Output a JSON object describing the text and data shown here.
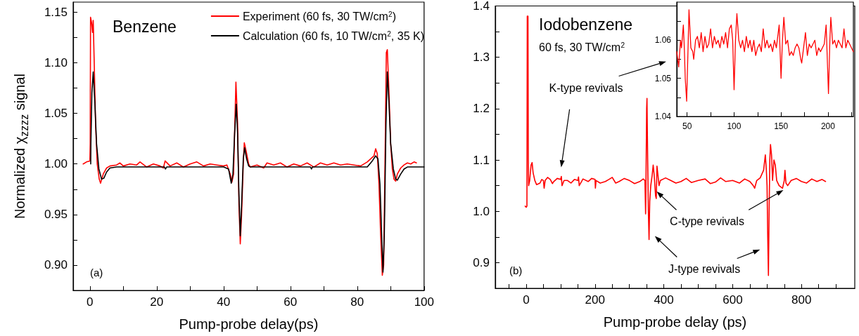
{
  "chart_data": [
    {
      "type": "line",
      "xlabel": "Pump-probe delay(ps)",
      "ylabel": "Normalized χ$_{zzzz}$ signal",
      "legend": "top right",
      "grid": false,
      "marker": "none",
      "xlim": [
        -5,
        100
      ],
      "ylim": [
        0.875,
        1.16
      ],
      "xticks": [
        0,
        {
          "value": 10,
          "label": null
        },
        20,
        {
          "value": 30,
          "label": null
        },
        40,
        {
          "value": 50,
          "label": null
        },
        60,
        {
          "value": 70,
          "label": null
        },
        80,
        {
          "value": 90,
          "label": null
        },
        100
      ],
      "yticks": [
        {
          "value": 0.9,
          "label": "0.90"
        },
        {
          "value": 0.925,
          "label": null
        },
        {
          "value": 0.95,
          "label": "0.95"
        },
        {
          "value": 0.975,
          "label": null
        },
        {
          "value": 1.0,
          "label": "1.00"
        },
        {
          "value": 1.025,
          "label": null
        },
        {
          "value": 1.05,
          "label": "1.05"
        },
        {
          "value": 1.075,
          "label": null
        },
        {
          "value": 1.1,
          "label": "1.10"
        },
        {
          "value": 1.125,
          "label": null
        },
        {
          "value": 1.15,
          "label": "1.15"
        }
      ],
      "annotations": [
        "Benzene",
        "(a)"
      ],
      "series": [
        {
          "name": "Experiment (60 fs, 30 TW/cm$^{2}$)",
          "color": "#ff0000",
          "x": [
            -2,
            -1,
            0,
            0.1,
            0.2,
            0.5,
            0.8,
            1.0,
            1.3,
            1.7,
            2.2,
            2.8,
            3.2,
            4,
            5,
            6,
            8,
            9,
            10,
            12,
            14,
            15,
            17,
            19,
            21,
            22,
            22.5,
            24,
            26,
            28,
            30,
            32,
            34,
            36,
            38,
            40,
            41,
            42,
            42.5,
            43,
            43.3,
            43.7,
            44.2,
            44.6,
            45,
            45.4,
            45.9,
            46.2,
            46.8,
            47.5,
            48,
            50,
            52,
            53,
            55,
            57,
            59,
            61,
            63,
            65,
            67,
            69,
            71,
            73,
            75,
            77,
            79,
            81,
            83,
            85,
            85.5,
            86,
            86.5,
            87,
            87.5,
            87.9,
            88.3,
            88.7,
            89,
            89.5,
            90,
            90.5,
            91,
            91.5,
            92,
            93,
            94,
            95,
            96,
            97,
            97.7
          ],
          "values": [
            1.0,
            1.002,
            1.003,
            1.02,
            1.145,
            1.14,
            1.13,
            1.142,
            1.1,
            1.04,
            1.0,
            0.985,
            0.981,
            0.99,
            0.996,
            0.998,
            0.999,
            1.001,
            0.998,
            1.0,
            0.999,
            1.002,
            0.997,
            1.0,
            0.998,
            0.996,
            1.003,
            0.998,
            1.001,
            0.997,
            1.0,
            1.002,
            0.998,
            1.0,
            0.999,
            0.998,
            0.999,
            0.99,
            0.982,
            0.99,
            1.03,
            1.081,
            1.04,
            0.96,
            0.921,
            0.95,
            1.0,
            1.021,
            1.012,
            1.0,
            0.997,
            0.999,
            0.996,
            1.001,
            0.999,
            1.001,
            0.997,
            1.0,
            0.998,
            1.001,
            0.997,
            1.001,
            0.999,
            1.001,
            0.999,
            1.0,
            0.999,
            0.998,
            1.002,
            1.008,
            1.015,
            1.01,
            0.98,
            0.93,
            0.89,
            0.9,
            1.0,
            1.11,
            1.113,
            1.07,
            1.02,
            0.995,
            0.985,
            0.983,
            0.99,
            0.996,
            0.999,
            1.001,
            1.0,
            1.002,
            1.001
          ]
        },
        {
          "name": "Calculation (60 fs, 10 TW/cm$^{2}$, 35 K)",
          "color": "#000000",
          "x": [
            0.25,
            0.3,
            0.6,
            1,
            1.5,
            2,
            2.7,
            3.5,
            4.2,
            5,
            6,
            8,
            20,
            22.3,
            22.6,
            23,
            40,
            41.5,
            42.3,
            42.8,
            43.3,
            43.8,
            44.2,
            44.6,
            45,
            45.4,
            45.9,
            46.3,
            46.9,
            47.5,
            48,
            66,
            66.3,
            66.6,
            83,
            84.5,
            85.5,
            86.2,
            86.8,
            87.3,
            87.7,
            88.1,
            88.6,
            89,
            89.5,
            90,
            90.8,
            91.5,
            92,
            93,
            94,
            95,
            100
          ],
          "values": [
            1.0,
            1.02,
            1.07,
            1.091,
            1.06,
            1.02,
            0.995,
            0.985,
            0.986,
            0.992,
            0.996,
            0.997,
            0.997,
            0.997,
            0.995,
            0.997,
            0.997,
            0.995,
            0.981,
            0.99,
            1.03,
            1.059,
            1.03,
            0.97,
            0.929,
            0.96,
            1.005,
            1.016,
            1.005,
            0.998,
            0.997,
            0.997,
            0.995,
            0.997,
            0.997,
            1.003,
            1.008,
            1.005,
            0.98,
            0.93,
            0.893,
            0.93,
            1.04,
            1.091,
            1.06,
            1.02,
            0.995,
            0.985,
            0.984,
            0.99,
            0.995,
            0.997,
            0.997
          ]
        }
      ]
    },
    {
      "type": "line",
      "xlabel": "Pump-probe delay (ps)",
      "grid": false,
      "marker": "none",
      "xlim": [
        -90,
        955
      ],
      "ylim": [
        0.85,
        1.4
      ],
      "xticks": [
        {
          "value": -50,
          "label": null
        },
        0,
        {
          "value": 50,
          "label": null
        },
        {
          "value": 100,
          "label": null
        },
        {
          "value": 150,
          "label": null
        },
        200,
        {
          "value": 250,
          "label": null
        },
        {
          "value": 300,
          "label": null
        },
        {
          "value": 350,
          "label": null
        },
        400,
        {
          "value": 450,
          "label": null
        },
        {
          "value": 500,
          "label": null
        },
        {
          "value": 550,
          "label": null
        },
        600,
        {
          "value": 650,
          "label": null
        },
        {
          "value": 700,
          "label": null
        },
        {
          "value": 750,
          "label": null
        },
        800,
        {
          "value": 850,
          "label": null
        },
        {
          "value": 900,
          "label": null
        }
      ],
      "yticks": [
        {
          "value": 0.85,
          "label": null
        },
        {
          "value": 0.9,
          "label": "0.9"
        },
        {
          "value": 0.95,
          "label": null
        },
        {
          "value": 1.0,
          "label": "1.0"
        },
        {
          "value": 1.05,
          "label": null
        },
        {
          "value": 1.1,
          "label": "1.1"
        },
        {
          "value": 1.15,
          "label": null
        },
        {
          "value": 1.2,
          "label": "1.2"
        },
        {
          "value": 1.25,
          "label": null
        },
        {
          "value": 1.3,
          "label": "1.3"
        },
        {
          "value": 1.35,
          "label": null
        },
        {
          "value": 1.4,
          "label": "1.4"
        }
      ],
      "annotations": [
        "Iodobenzene",
        "60 fs, 30 TW/cm$^{2}$",
        "K-type revivals",
        "C-type revivals",
        "J-type revivals",
        "(b)"
      ],
      "series": [
        {
          "color": "#ff0000",
          "x": [
            -3,
            0,
            2,
            3,
            5,
            6,
            7,
            10,
            14,
            17,
            20,
            25,
            30,
            40,
            45,
            50,
            52,
            55,
            62,
            70,
            76,
            80,
            90,
            100,
            102,
            104,
            110,
            120,
            130,
            140,
            150,
            152,
            154,
            165,
            180,
            190,
            200,
            201,
            203,
            215,
            230,
            240,
            250,
            260,
            270,
            285,
            300,
            315,
            330,
            340,
            345,
            347,
            348,
            350,
            351,
            353,
            355,
            357,
            359,
            362,
            366,
            369,
            372,
            376,
            378,
            380,
            383,
            386,
            390,
            405,
            420,
            435,
            450,
            465,
            480,
            500,
            520,
            535,
            550,
            565,
            580,
            600,
            620,
            635,
            650,
            660,
            664,
            670,
            680,
            690,
            695,
            698,
            700,
            702,
            704,
            706,
            708,
            710,
            713,
            716,
            720,
            724,
            728,
            735,
            745,
            750,
            752,
            755,
            760,
            770,
            785,
            800,
            815,
            830,
            845,
            860,
            870
          ],
          "values": [
            1.01,
            1.008,
            1.01,
            1.38,
            1.38,
            1.1,
            1.05,
            1.06,
            1.09,
            1.095,
            1.075,
            1.06,
            1.052,
            1.055,
            1.062,
            1.06,
            1.045,
            1.06,
            1.066,
            1.062,
            1.054,
            1.058,
            1.064,
            1.062,
            1.068,
            1.05,
            1.06,
            1.06,
            1.055,
            1.062,
            1.06,
            1.067,
            1.05,
            1.063,
            1.058,
            1.064,
            1.062,
            1.045,
            1.06,
            1.055,
            1.058,
            1.062,
            1.066,
            1.055,
            1.058,
            1.064,
            1.06,
            1.054,
            1.058,
            1.063,
            1.06,
            0.995,
            1.05,
            1.2,
            1.22,
            1.1,
            1.0,
            0.945,
            1.02,
            1.05,
            1.07,
            1.09,
            1.07,
            1.03,
            1.025,
            1.088,
            1.07,
            1.05,
            1.06,
            1.065,
            1.06,
            1.055,
            1.058,
            1.064,
            1.056,
            1.06,
            1.063,
            1.054,
            1.057,
            1.065,
            1.058,
            1.06,
            1.055,
            1.063,
            1.058,
            1.05,
            1.045,
            1.06,
            1.065,
            1.08,
            1.11,
            1.08,
            1.05,
            0.95,
            0.875,
            1.0,
            1.1,
            1.13,
            1.11,
            1.06,
            1.1,
            1.09,
            1.06,
            1.05,
            1.045,
            1.06,
            1.08,
            1.055,
            1.05,
            1.06,
            1.064,
            1.058,
            1.055,
            1.063,
            1.058,
            1.062,
            1.058
          ]
        }
      ]
    },
    {
      "type": "line",
      "grid": false,
      "marker": "none",
      "xlim": [
        39,
        227
      ],
      "ylim": [
        1.04,
        1.07
      ],
      "xticks": [
        50,
        {
          "value": 75,
          "label": null
        },
        100,
        {
          "value": 125,
          "label": null
        },
        150,
        {
          "value": 175,
          "label": null
        },
        200,
        {
          "value": 225,
          "label": null
        }
      ],
      "yticks": [
        1.04,
        {
          "value": 1.045,
          "label": null
        },
        1.05,
        {
          "value": 1.055,
          "label": null
        },
        1.06,
        {
          "value": 1.065,
          "label": null
        }
      ],
      "series": [
        {
          "color": "#ff0000",
          "x": [
            39,
            40,
            41,
            43,
            44,
            46,
            47,
            48,
            49.5,
            51,
            52,
            53,
            54,
            56,
            57,
            59,
            61,
            63,
            65,
            67,
            69,
            71,
            73,
            75,
            77,
            79,
            81,
            83,
            85,
            87,
            89,
            91,
            93,
            95,
            97,
            98.5,
            100,
            101.5,
            103,
            105,
            107,
            109,
            111,
            113,
            115,
            117,
            119,
            121,
            123,
            125,
            127,
            129,
            131,
            133,
            135,
            137,
            139,
            141,
            143,
            145,
            148,
            150,
            151.5,
            153,
            155,
            157,
            159,
            161,
            163,
            165,
            167,
            169,
            171,
            172,
            174,
            176,
            178,
            180,
            182,
            184,
            186,
            188,
            190,
            192,
            194,
            196,
            198,
            200.5,
            202,
            203,
            205,
            207,
            209,
            211,
            213,
            215,
            217,
            219,
            221,
            223,
            225,
            227
          ],
          "values": [
            1.057,
            1.055,
            1.053,
            1.06,
            1.058,
            1.064,
            1.058,
            1.05,
            1.044,
            1.058,
            1.068,
            1.063,
            1.058,
            1.057,
            1.055,
            1.06,
            1.061,
            1.058,
            1.062,
            1.057,
            1.061,
            1.058,
            1.059,
            1.063,
            1.058,
            1.061,
            1.059,
            1.06,
            1.058,
            1.061,
            1.059,
            1.062,
            1.058,
            1.063,
            1.064,
            1.06,
            1.047,
            1.06,
            1.067,
            1.06,
            1.058,
            1.06,
            1.057,
            1.061,
            1.058,
            1.06,
            1.057,
            1.06,
            1.056,
            1.058,
            1.059,
            1.057,
            1.063,
            1.058,
            1.06,
            1.058,
            1.059,
            1.057,
            1.06,
            1.058,
            1.064,
            1.05,
            1.06,
            1.066,
            1.059,
            1.06,
            1.056,
            1.057,
            1.056,
            1.058,
            1.059,
            1.058,
            1.055,
            1.054,
            1.058,
            1.062,
            1.056,
            1.059,
            1.058,
            1.059,
            1.06,
            1.056,
            1.058,
            1.057,
            1.058,
            1.059,
            1.064,
            1.046,
            1.06,
            1.066,
            1.059,
            1.06,
            1.058,
            1.06,
            1.059,
            1.058,
            1.063,
            1.058,
            1.06,
            1.059,
            1.058,
            1.057
          ]
        }
      ]
    }
  ]
}
